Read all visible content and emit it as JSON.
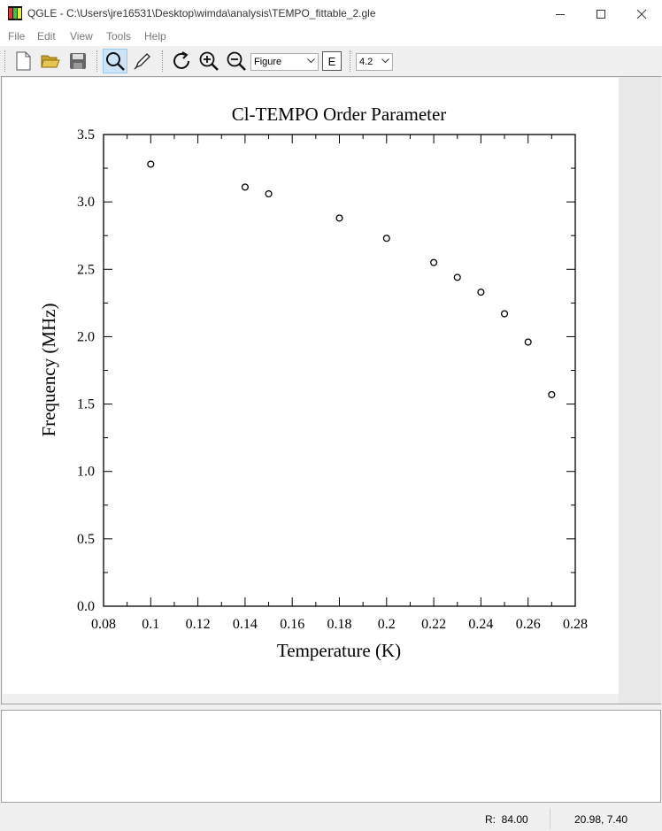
{
  "window": {
    "title": "QGLE - C:\\Users\\jre16531\\Desktop\\wimda\\analysis\\TEMPO_fittable_2.gle",
    "app_icon_text": "QLE"
  },
  "menu": [
    "File",
    "Edit",
    "View",
    "Tools",
    "Help"
  ],
  "toolbar": {
    "view_mode": "Figure",
    "e_label": "E",
    "version": "4.2"
  },
  "status": {
    "resolution": "R:  84.00",
    "coords": "20.98, 7.40"
  },
  "chart_data": {
    "type": "scatter",
    "title": "Cl-TEMPO Order Parameter",
    "xlabel": "Temperature (K)",
    "ylabel": "Frequency (MHz)",
    "xlim": [
      0.08,
      0.28
    ],
    "ylim": [
      0.0,
      3.5
    ],
    "xticks": [
      "0.08",
      "0.1",
      "0.12",
      "0.14",
      "0.16",
      "0.18",
      "0.2",
      "0.22",
      "0.24",
      "0.26",
      "0.28"
    ],
    "yticks": [
      "0.0",
      "0.5",
      "1.0",
      "1.5",
      "2.0",
      "2.5",
      "3.0",
      "3.5"
    ],
    "marker": "open-circle",
    "points": [
      {
        "x": 0.1,
        "y": 3.28
      },
      {
        "x": 0.14,
        "y": 3.11
      },
      {
        "x": 0.15,
        "y": 3.06
      },
      {
        "x": 0.18,
        "y": 2.88
      },
      {
        "x": 0.2,
        "y": 2.73
      },
      {
        "x": 0.22,
        "y": 2.55
      },
      {
        "x": 0.23,
        "y": 2.44
      },
      {
        "x": 0.24,
        "y": 2.33
      },
      {
        "x": 0.25,
        "y": 2.17
      },
      {
        "x": 0.26,
        "y": 1.96
      },
      {
        "x": 0.27,
        "y": 1.57
      }
    ]
  }
}
